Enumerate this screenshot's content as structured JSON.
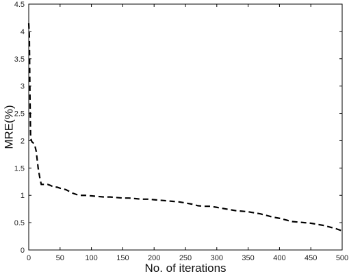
{
  "chart_data": {
    "type": "line",
    "title": "",
    "xlabel": "No. of iterations",
    "ylabel": "MRE(%)",
    "xlim": [
      0,
      500
    ],
    "ylim": [
      0,
      4.5
    ],
    "xticks": [
      0,
      50,
      100,
      150,
      200,
      250,
      300,
      350,
      400,
      450,
      500
    ],
    "yticks": [
      0,
      0.5,
      1,
      1.5,
      2,
      2.5,
      3,
      3.5,
      4,
      4.5
    ],
    "ytick_labels": [
      "0",
      "0.5",
      "1",
      "1.5",
      "2",
      "2.5",
      "3",
      "3.5",
      "4",
      "4.5"
    ],
    "grid": false,
    "legend": "none",
    "line_style": "dashed",
    "line_color": "#000000",
    "series": [
      {
        "x": [
          0,
          1,
          2,
          3,
          5,
          8,
          10,
          12,
          15,
          18,
          20,
          25,
          30,
          35,
          40,
          45,
          50,
          55,
          60,
          65,
          70,
          75,
          80,
          90,
          100,
          110,
          120,
          130,
          140,
          150,
          160,
          170,
          180,
          190,
          200,
          210,
          220,
          230,
          240,
          250,
          260,
          270,
          280,
          290,
          300,
          310,
          320,
          330,
          340,
          350,
          360,
          370,
          380,
          390,
          400,
          410,
          420,
          430,
          440,
          450,
          460,
          470,
          480,
          490,
          500
        ],
        "values": [
          4.15,
          3.9,
          2.8,
          2.05,
          1.98,
          1.95,
          1.9,
          1.8,
          1.5,
          1.3,
          1.2,
          1.2,
          1.2,
          1.18,
          1.15,
          1.15,
          1.13,
          1.12,
          1.1,
          1.07,
          1.04,
          1.02,
          1.0,
          1.0,
          0.99,
          0.98,
          0.97,
          0.97,
          0.96,
          0.95,
          0.95,
          0.94,
          0.93,
          0.93,
          0.92,
          0.91,
          0.9,
          0.89,
          0.88,
          0.86,
          0.84,
          0.81,
          0.8,
          0.8,
          0.78,
          0.76,
          0.74,
          0.72,
          0.71,
          0.7,
          0.68,
          0.66,
          0.63,
          0.6,
          0.58,
          0.55,
          0.52,
          0.51,
          0.5,
          0.49,
          0.47,
          0.45,
          0.42,
          0.39,
          0.35
        ]
      }
    ]
  }
}
